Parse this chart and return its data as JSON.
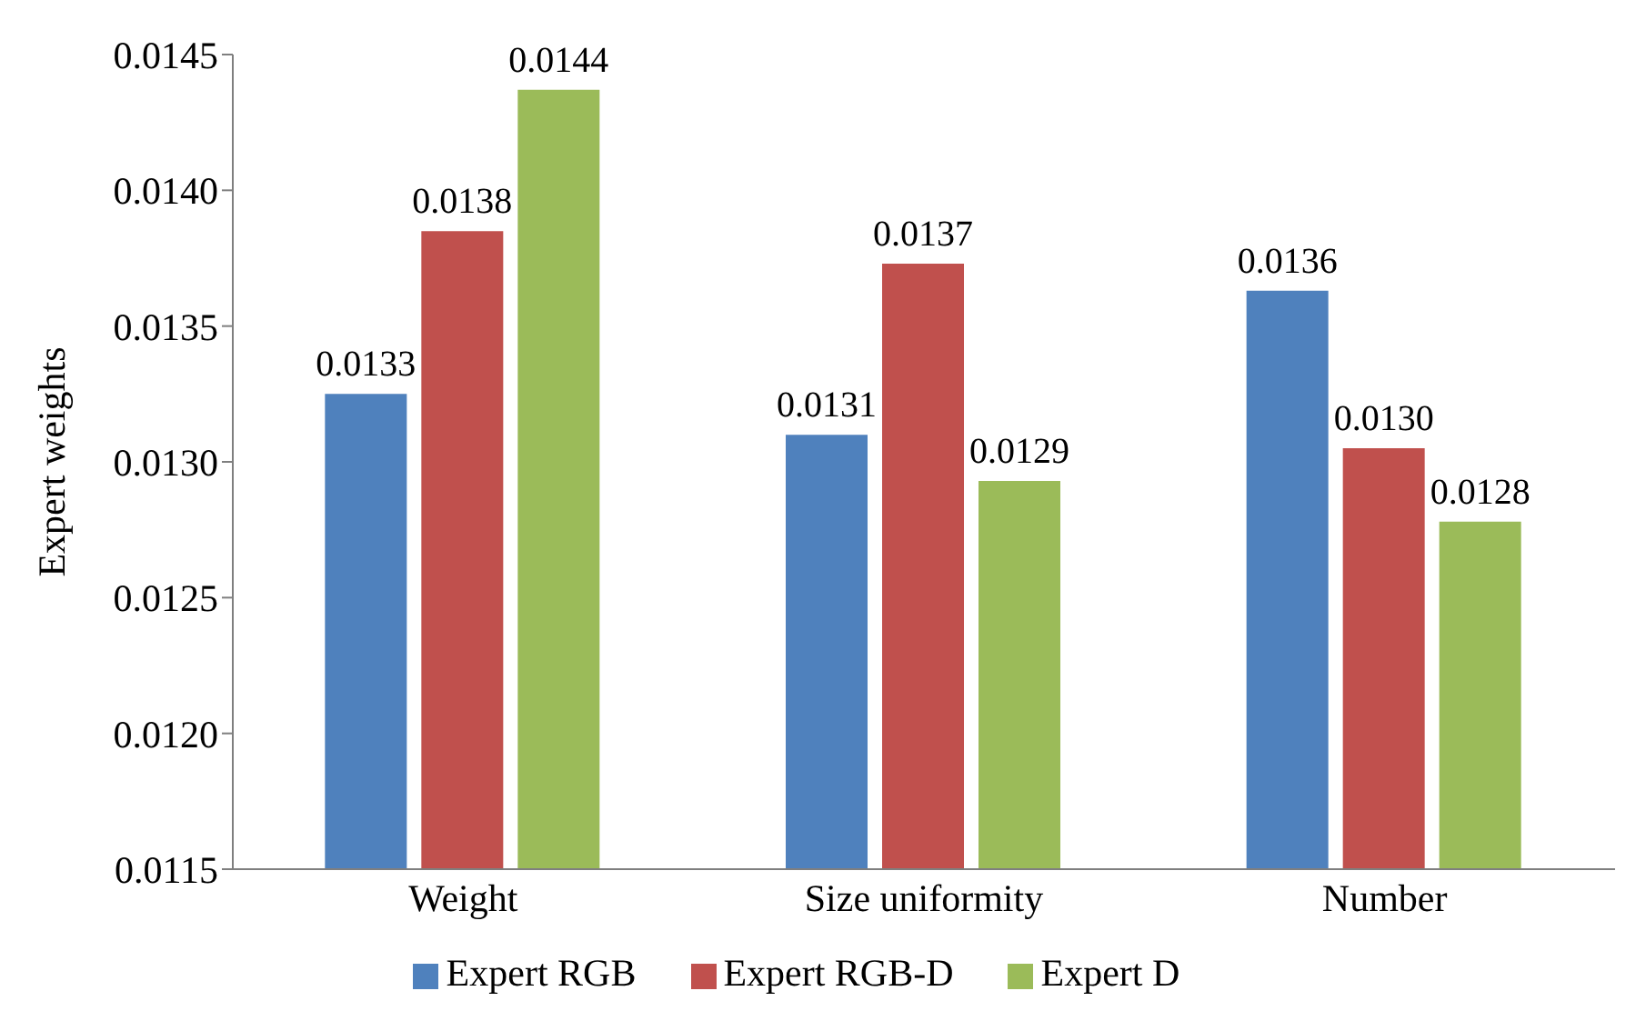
{
  "chart_data": {
    "type": "bar",
    "ylabel": "Expert weights",
    "categories": [
      "Weight",
      "Size uniformity",
      "Number"
    ],
    "series": [
      {
        "name": "Expert RGB",
        "color": "#4f81bd",
        "values": [
          0.01325,
          0.0131,
          0.01363
        ],
        "value_labels": [
          "0.0133",
          "0.0131",
          "0.0136"
        ]
      },
      {
        "name": "Expert RGB-D",
        "color": "#c0504d",
        "values": [
          0.01385,
          0.01373,
          0.01305
        ],
        "value_labels": [
          "0.0138",
          "0.0137",
          "0.0130"
        ]
      },
      {
        "name": "Expert D",
        "color": "#9bbb59",
        "values": [
          0.01437,
          0.01293,
          0.01278
        ],
        "value_labels": [
          "0.0144",
          "0.0129",
          "0.0128"
        ]
      }
    ],
    "ylim": [
      0.0115,
      0.0145
    ],
    "yticks": [
      {
        "value": 0.0115,
        "label": "0.0115"
      },
      {
        "value": 0.012,
        "label": "0.0120"
      },
      {
        "value": 0.0125,
        "label": "0.0125"
      },
      {
        "value": 0.013,
        "label": "0.0130"
      },
      {
        "value": 0.0135,
        "label": "0.0135"
      },
      {
        "value": 0.014,
        "label": "0.0140"
      },
      {
        "value": 0.0145,
        "label": "0.0145"
      }
    ],
    "grid": false,
    "legend": "bottom"
  }
}
